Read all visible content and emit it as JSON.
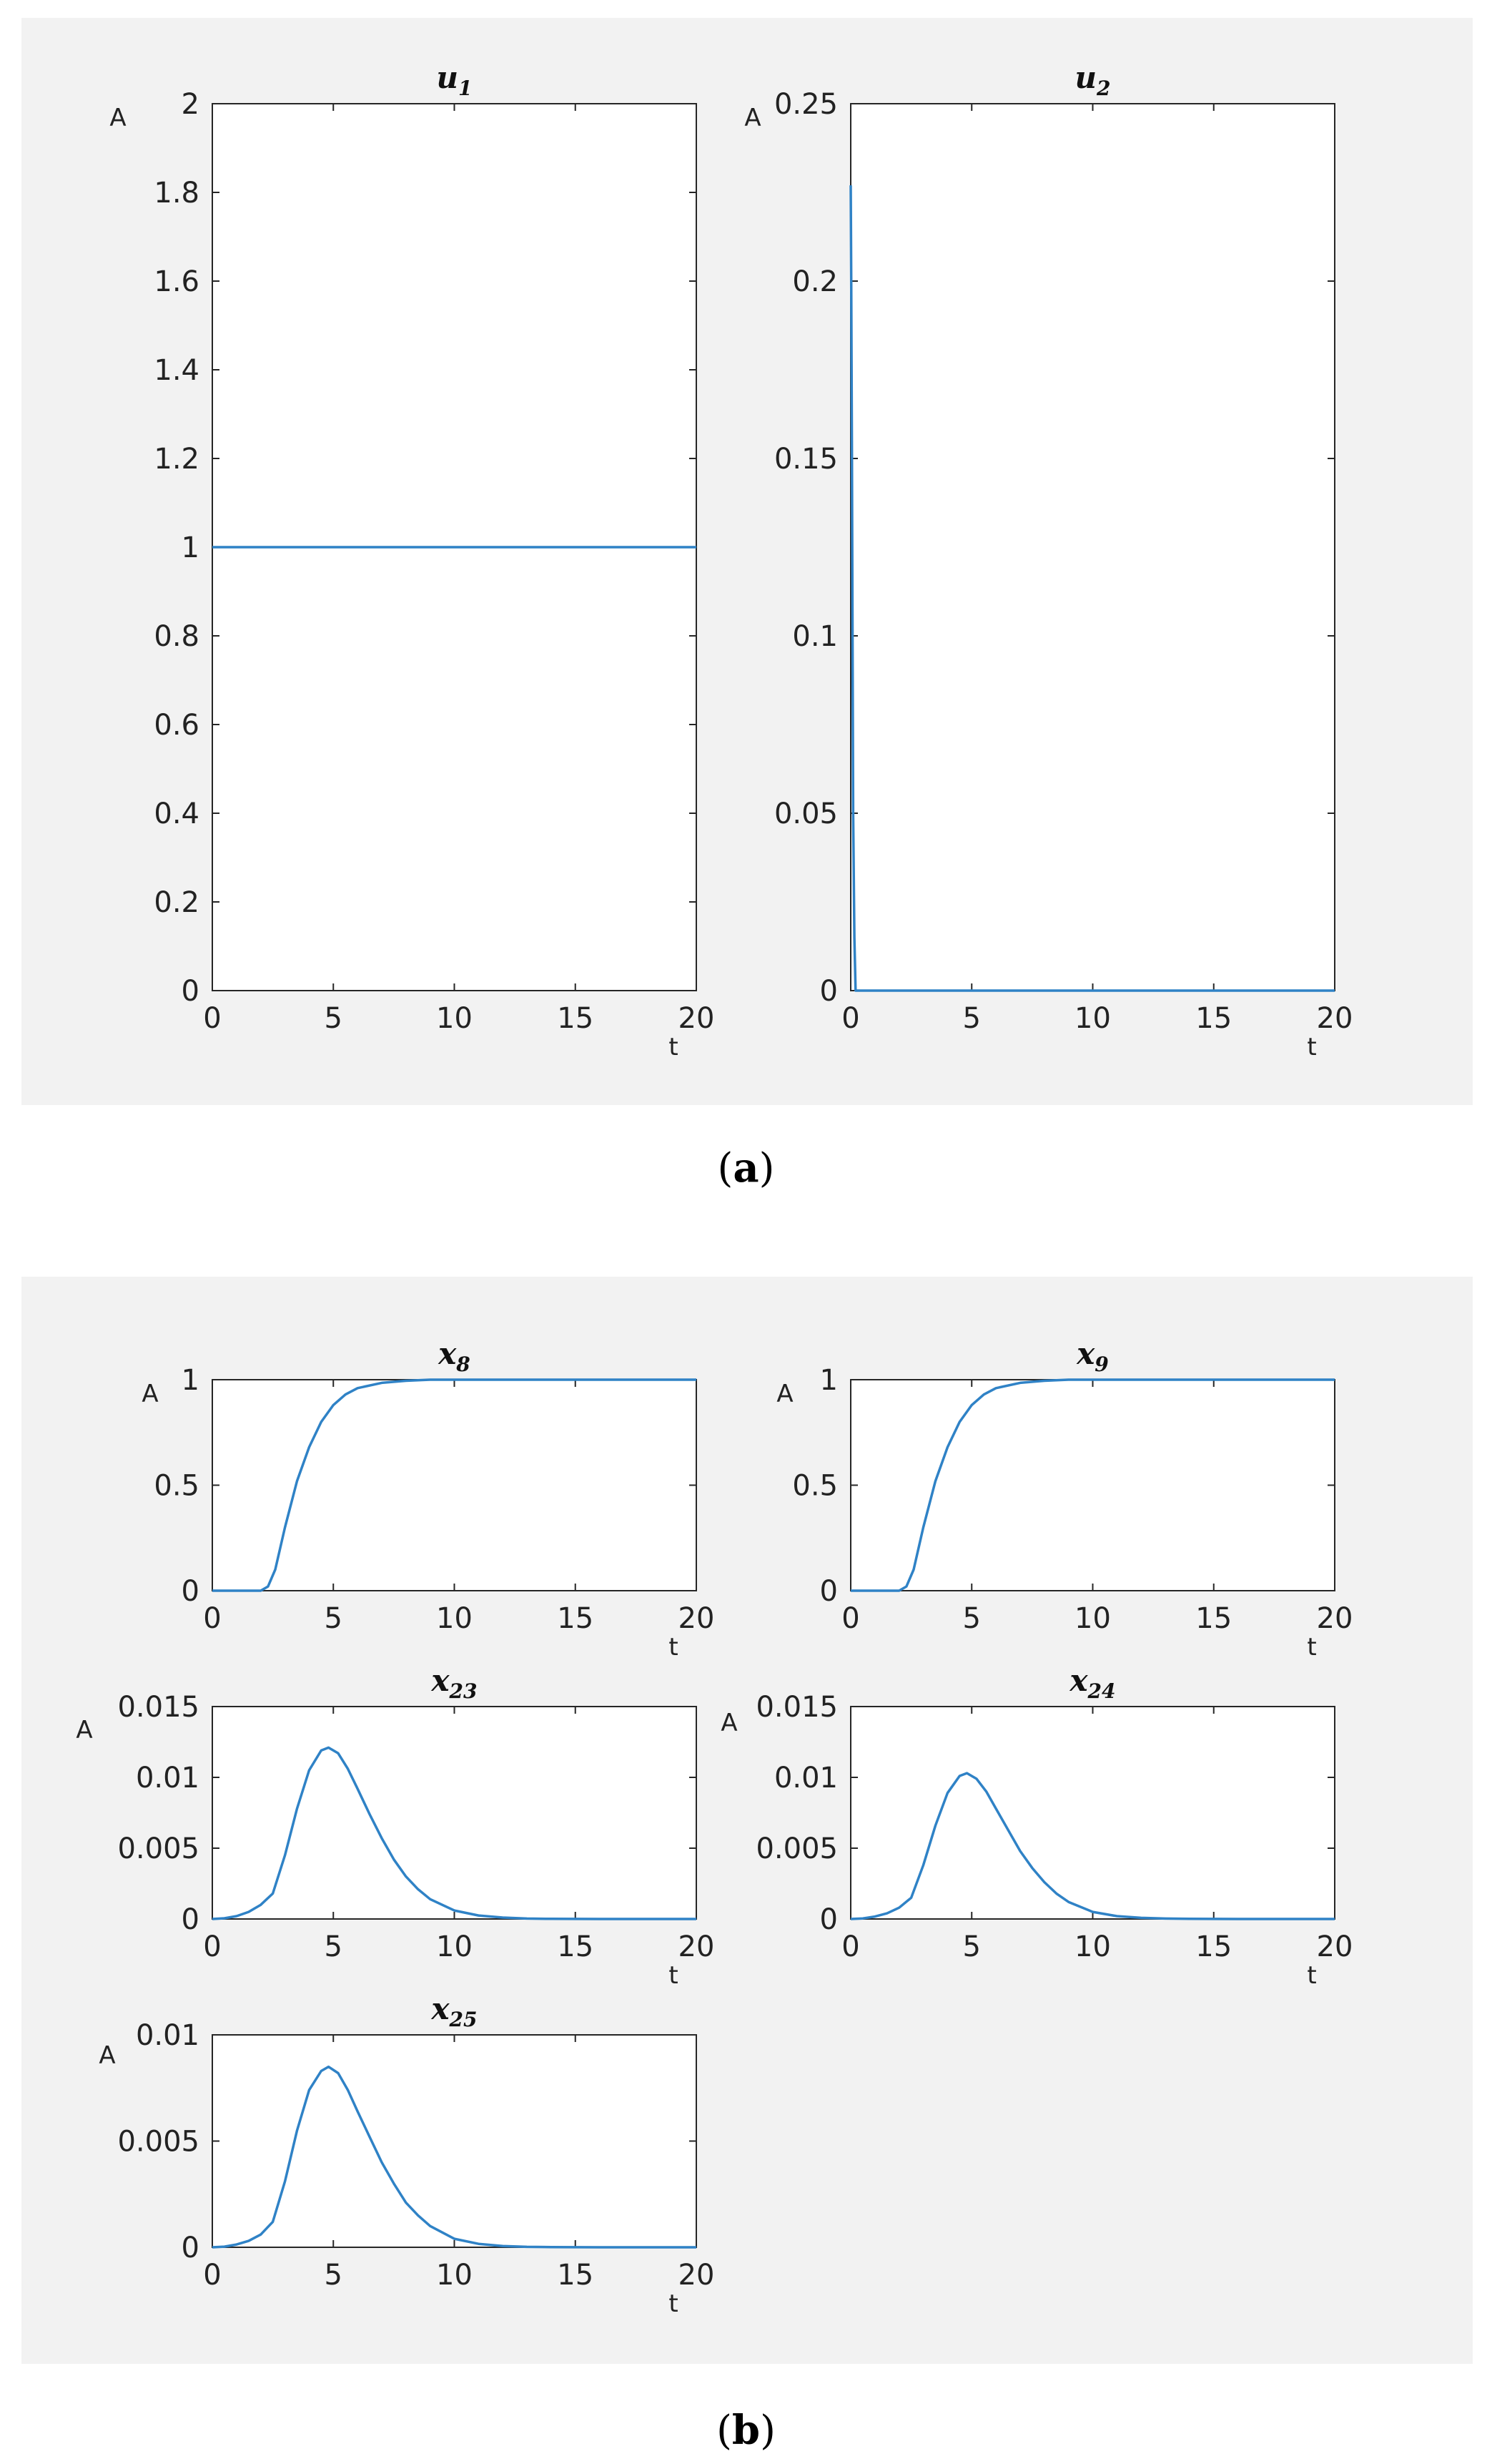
{
  "figure": {
    "caption_a": "a",
    "caption_b": "b"
  },
  "colors": {
    "line": "#2f82c6",
    "panel": "#f2f2f2",
    "axis": "#262626"
  },
  "chart_data": [
    {
      "id": "u1",
      "type": "line",
      "title": "u",
      "title_sub": "1",
      "xlabel": "t",
      "ylabel": "A",
      "xlim": [
        0,
        20
      ],
      "ylim": [
        0,
        2
      ],
      "xticks": [
        0,
        5,
        10,
        15,
        20
      ],
      "xtick_labels": [
        "0",
        "5",
        "10",
        "15",
        "20"
      ],
      "yticks": [
        0,
        0.2,
        0.4,
        0.6,
        0.8,
        1,
        1.2,
        1.4,
        1.6,
        1.8,
        2
      ],
      "ytick_labels": [
        "0",
        "0.2",
        "0.4",
        "0.6",
        "0.8",
        "1",
        "1.2",
        "1.4",
        "1.6",
        "1.8",
        "2"
      ],
      "series": [
        {
          "x": [
            0,
            20
          ],
          "y": [
            1,
            1
          ]
        }
      ]
    },
    {
      "id": "u2",
      "type": "line",
      "title": "u",
      "title_sub": "2",
      "xlabel": "t",
      "ylabel": "A",
      "xlim": [
        0,
        20
      ],
      "ylim": [
        0,
        0.25
      ],
      "xticks": [
        0,
        5,
        10,
        15,
        20
      ],
      "xtick_labels": [
        "0",
        "5",
        "10",
        "15",
        "20"
      ],
      "yticks": [
        0,
        0.05,
        0.1,
        0.15,
        0.2,
        0.25
      ],
      "ytick_labels": [
        "0",
        "0.05",
        "0.1",
        "0.15",
        "0.2",
        "0.25"
      ],
      "series": [
        {
          "x": [
            0,
            0.02,
            0.05,
            0.08,
            0.1,
            0.15,
            0.2,
            20
          ],
          "y": [
            0.227,
            0.2,
            0.15,
            0.09,
            0.05,
            0.015,
            0,
            0
          ]
        }
      ]
    },
    {
      "id": "x8",
      "type": "line",
      "title": "x",
      "title_sub": "8",
      "xlabel": "t",
      "ylabel": "A",
      "xlim": [
        0,
        20
      ],
      "ylim": [
        0,
        1
      ],
      "xticks": [
        0,
        5,
        10,
        15,
        20
      ],
      "xtick_labels": [
        "0",
        "5",
        "10",
        "15",
        "20"
      ],
      "yticks": [
        0,
        0.5,
        1
      ],
      "ytick_labels": [
        "0",
        "0.5",
        "1"
      ],
      "series": [
        {
          "x": [
            0,
            1,
            2,
            2.3,
            2.6,
            3,
            3.5,
            4,
            4.5,
            5,
            5.5,
            6,
            7,
            8,
            9,
            10,
            12,
            15,
            20
          ],
          "y": [
            0,
            0,
            0,
            0.02,
            0.1,
            0.3,
            0.52,
            0.68,
            0.8,
            0.88,
            0.93,
            0.96,
            0.985,
            0.995,
            1,
            1,
            1,
            1,
            1
          ]
        }
      ]
    },
    {
      "id": "x9",
      "type": "line",
      "title": "x",
      "title_sub": "9",
      "xlabel": "t",
      "ylabel": "A",
      "xlim": [
        0,
        20
      ],
      "ylim": [
        0,
        1
      ],
      "xticks": [
        0,
        5,
        10,
        15,
        20
      ],
      "xtick_labels": [
        "0",
        "5",
        "10",
        "15",
        "20"
      ],
      "yticks": [
        0,
        0.5,
        1
      ],
      "ytick_labels": [
        "0",
        "0.5",
        "1"
      ],
      "series": [
        {
          "x": [
            0,
            1,
            2,
            2.3,
            2.6,
            3,
            3.5,
            4,
            4.5,
            5,
            5.5,
            6,
            7,
            8,
            9,
            10,
            12,
            15,
            20
          ],
          "y": [
            0,
            0,
            0,
            0.02,
            0.1,
            0.3,
            0.52,
            0.68,
            0.8,
            0.88,
            0.93,
            0.96,
            0.985,
            0.995,
            1,
            1,
            1,
            1,
            1
          ]
        }
      ]
    },
    {
      "id": "x23",
      "type": "line",
      "title": "x",
      "title_sub": "23",
      "xlabel": "t",
      "ylabel": "A",
      "xlim": [
        0,
        20
      ],
      "ylim": [
        0,
        0.015
      ],
      "xticks": [
        0,
        5,
        10,
        15,
        20
      ],
      "xtick_labels": [
        "0",
        "5",
        "10",
        "15",
        "20"
      ],
      "yticks": [
        0,
        0.005,
        0.01,
        0.015
      ],
      "ytick_labels": [
        "0",
        "0.005",
        "0.01",
        "0.015"
      ],
      "series": [
        {
          "x": [
            0,
            0.5,
            1,
            1.5,
            2,
            2.5,
            3,
            3.5,
            4,
            4.5,
            4.8,
            5.2,
            5.6,
            6,
            6.5,
            7,
            7.5,
            8,
            8.5,
            9,
            10,
            11,
            12,
            13,
            14,
            16,
            20
          ],
          "y": [
            0,
            5e-05,
            0.0002,
            0.0005,
            0.001,
            0.0018,
            0.0045,
            0.0078,
            0.0105,
            0.0119,
            0.0121,
            0.0117,
            0.0106,
            0.0092,
            0.0074,
            0.0057,
            0.0042,
            0.003,
            0.0021,
            0.0014,
            0.0006,
            0.00025,
            0.0001,
            3e-05,
            1e-05,
            0,
            0
          ]
        }
      ]
    },
    {
      "id": "x24",
      "type": "line",
      "title": "x",
      "title_sub": "24",
      "xlabel": "t",
      "ylabel": "A",
      "xlim": [
        0,
        20
      ],
      "ylim": [
        0,
        0.015
      ],
      "xticks": [
        0,
        5,
        10,
        15,
        20
      ],
      "xtick_labels": [
        "0",
        "5",
        "10",
        "15",
        "20"
      ],
      "yticks": [
        0,
        0.005,
        0.01,
        0.015
      ],
      "ytick_labels": [
        "0",
        "0.005",
        "0.01",
        "0.015"
      ],
      "series": [
        {
          "x": [
            0,
            0.5,
            1,
            1.5,
            2,
            2.5,
            3,
            3.5,
            4,
            4.5,
            4.8,
            5.2,
            5.6,
            6,
            6.5,
            7,
            7.5,
            8,
            8.5,
            9,
            10,
            11,
            12,
            13,
            14,
            16,
            20
          ],
          "y": [
            0,
            4e-05,
            0.00017,
            0.0004,
            0.0008,
            0.0015,
            0.0038,
            0.0066,
            0.0089,
            0.0101,
            0.0103,
            0.0099,
            0.009,
            0.0078,
            0.0063,
            0.0048,
            0.0036,
            0.0026,
            0.0018,
            0.0012,
            0.0005,
            0.0002,
            8e-05,
            3e-05,
            1e-05,
            0,
            0
          ]
        }
      ]
    },
    {
      "id": "x25",
      "type": "line",
      "title": "x",
      "title_sub": "25",
      "xlabel": "t",
      "ylabel": "A",
      "xlim": [
        0,
        20
      ],
      "ylim": [
        0,
        0.01
      ],
      "xticks": [
        0,
        5,
        10,
        15,
        20
      ],
      "xtick_labels": [
        "0",
        "5",
        "10",
        "15",
        "20"
      ],
      "yticks": [
        0,
        0.005,
        0.01
      ],
      "ytick_labels": [
        "0",
        "0.005",
        "0.01"
      ],
      "series": [
        {
          "x": [
            0,
            0.5,
            1,
            1.5,
            2,
            2.5,
            3,
            3.5,
            4,
            4.5,
            4.8,
            5.2,
            5.6,
            6,
            6.5,
            7,
            7.5,
            8,
            8.5,
            9,
            10,
            11,
            12,
            13,
            14,
            16,
            20
          ],
          "y": [
            0,
            3e-05,
            0.00013,
            0.0003,
            0.0006,
            0.0012,
            0.0031,
            0.0055,
            0.0074,
            0.0083,
            0.0085,
            0.0082,
            0.0074,
            0.0064,
            0.0052,
            0.004,
            0.003,
            0.0021,
            0.0015,
            0.001,
            0.0004,
            0.00016,
            6e-05,
            2e-05,
            1e-05,
            0,
            0
          ]
        }
      ]
    }
  ]
}
